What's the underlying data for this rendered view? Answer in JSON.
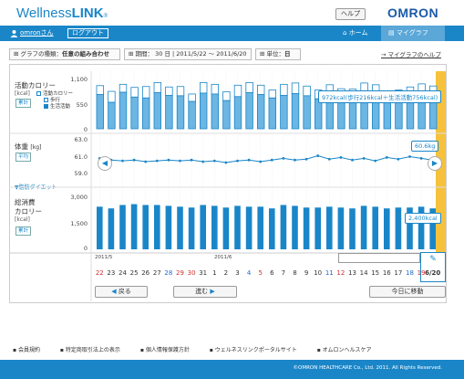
{
  "header": {
    "logo_wellness": "Wellness",
    "logo_link": "LINK",
    "logo_tm": "®",
    "help_label": "ヘルプ",
    "brand": "OMRON"
  },
  "nav": {
    "user": "omronさん",
    "logout": "ログアウト",
    "home": "ホーム",
    "mygraph": "マイグラフ"
  },
  "options": {
    "graph_type_label": "グラフの種類：",
    "graph_type_value": "任意の組み合わせ",
    "period_label": "期間：",
    "period_days": "30 日",
    "period_range": "2011/5/22 ～ 2011/6/20",
    "unit_label": "単位：",
    "unit_value": "日",
    "mygraph_help": "マイグラフのヘルプ"
  },
  "charts": {
    "activity": {
      "title": "活動カロリー",
      "unit": "[kcal]",
      "button": "累計",
      "legend_title": "活動カロリー",
      "legend_walk": "歩行",
      "legend_life": "生活活動",
      "ticks": [
        "1,100",
        "550",
        "0"
      ],
      "callout": "972kcal(歩行216kcal＋生活活動756kcal)"
    },
    "weight": {
      "title": "体重",
      "unit": "[kg]",
      "button": "平均",
      "ticks": [
        "63.0",
        "61.0",
        "59.0"
      ],
      "callout": "60.6kg",
      "diet": "▼脂肪ダイエット"
    },
    "total": {
      "title1": "総消費",
      "title2": "カロリー",
      "unit": "[kcal]",
      "button": "累計",
      "ticks": [
        "3,000",
        "1,500",
        "0"
      ],
      "callout": "2,400kcal"
    }
  },
  "chart_data": [
    {
      "type": "bar",
      "name": "activity",
      "ylim": [
        0,
        1100
      ],
      "series": [
        {
          "name": "歩行",
          "values": [
            200,
            250,
            180,
            220,
            260,
            230,
            190,
            210,
            170,
            240,
            220,
            200,
            260,
            230,
            210,
            180,
            250,
            240,
            220,
            200,
            230,
            190,
            210,
            240,
            220,
            200,
            180,
            210,
            230,
            216
          ]
        },
        {
          "name": "生活活動",
          "values": [
            780,
            600,
            830,
            720,
            700,
            820,
            760,
            750,
            620,
            810,
            790,
            640,
            730,
            820,
            780,
            700,
            760,
            800,
            750,
            680,
            770,
            720,
            690,
            800,
            780,
            620,
            700,
            740,
            790,
            756
          ]
        }
      ]
    },
    {
      "type": "line",
      "name": "weight",
      "ylim": [
        59.0,
        63.0
      ],
      "values": [
        60.8,
        60.6,
        60.5,
        60.6,
        60.4,
        60.5,
        60.6,
        60.5,
        60.6,
        60.4,
        60.5,
        60.3,
        60.5,
        60.6,
        60.4,
        60.6,
        60.8,
        60.6,
        60.7,
        61.1,
        60.7,
        60.9,
        60.6,
        60.8,
        60.5,
        60.9,
        60.7,
        61.0,
        60.8,
        60.6
      ]
    },
    {
      "type": "bar",
      "name": "total",
      "ylim": [
        0,
        3000
      ],
      "values": [
        2500,
        2400,
        2600,
        2650,
        2600,
        2600,
        2550,
        2500,
        2450,
        2600,
        2550,
        2450,
        2550,
        2500,
        2500,
        2400,
        2600,
        2550,
        2450,
        2450,
        2500,
        2450,
        2400,
        2550,
        2500,
        2400,
        2450,
        2450,
        2500,
        2400
      ]
    }
  ],
  "timeline": {
    "month1": "2011/5",
    "month2": "2011/6",
    "days": [
      "22",
      "23",
      "24",
      "25",
      "26",
      "27",
      "28",
      "29",
      "30",
      "31",
      "1",
      "2",
      "3",
      "4",
      "5",
      "6",
      "7",
      "8",
      "9",
      "10",
      "11",
      "12",
      "13",
      "14",
      "15",
      "16",
      "17",
      "18",
      "19",
      "6/20"
    ],
    "day_colors": [
      "red",
      "",
      "",
      "",
      "",
      "",
      "blue",
      "red",
      "red",
      "",
      "",
      "",
      "",
      "blue",
      "red",
      "",
      "",
      "",
      "",
      "",
      "blue",
      "red",
      "",
      "",
      "",
      "",
      "",
      "blue",
      "red",
      ""
    ]
  },
  "buttons": {
    "prev": "戻る",
    "next": "進む",
    "today": "今日に移動"
  },
  "footer": {
    "links": [
      "会員規約",
      "特定商取引法上の表示",
      "個人情報保護方針",
      "ウェルネスリンクポータルサイト",
      "オムロンヘルスケア"
    ],
    "copyright": "©OMRON HEALTHCARE Co., Ltd. 2011. All Rights Reserved."
  }
}
